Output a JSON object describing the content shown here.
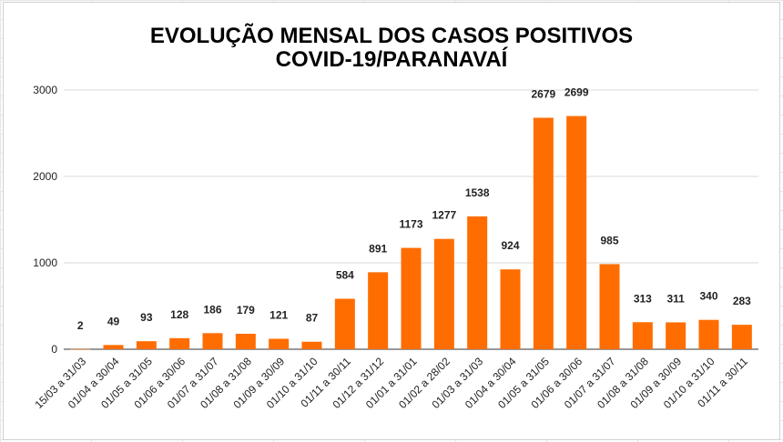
{
  "chart_data": {
    "type": "bar",
    "title_line1": "EVOLUÇÃO MENSAL DOS CASOS POSITIVOS",
    "title_line2": "COVID-19/PARANAVAÍ",
    "categories": [
      "15/03 a 31/03",
      "01/04 a 30/04",
      "01/05 a 31/05",
      "01/06 a 30/06",
      "01/07 a 31/07",
      "01/08 a 31/08",
      "01/09 a 30/09",
      "01/10 a 31/10",
      "01/11 a 30/11",
      "01/12 a 31/12",
      "01/01 a 31/01",
      "01/02 a 28/02",
      "01/03 a 31/03",
      "01/04 a 30/04",
      "01/05 a 31/05",
      "01/06 a 30/06",
      "01/07 a 31/07",
      "01/08 a 31/08",
      "01/09 a 30/09",
      "01/10 a 31/10",
      "01/11 a 30/11"
    ],
    "values": [
      2,
      49,
      93,
      128,
      186,
      179,
      121,
      87,
      584,
      891,
      1173,
      1277,
      1538,
      924,
      2679,
      2699,
      985,
      313,
      311,
      340,
      283
    ],
    "ylim": [
      0,
      3000
    ],
    "yticks": [
      0,
      1000,
      2000,
      3000
    ],
    "grid": true,
    "bar_color": "#ff6d01",
    "grid_color": "#d9d9d9",
    "xlabel": "",
    "ylabel": ""
  }
}
